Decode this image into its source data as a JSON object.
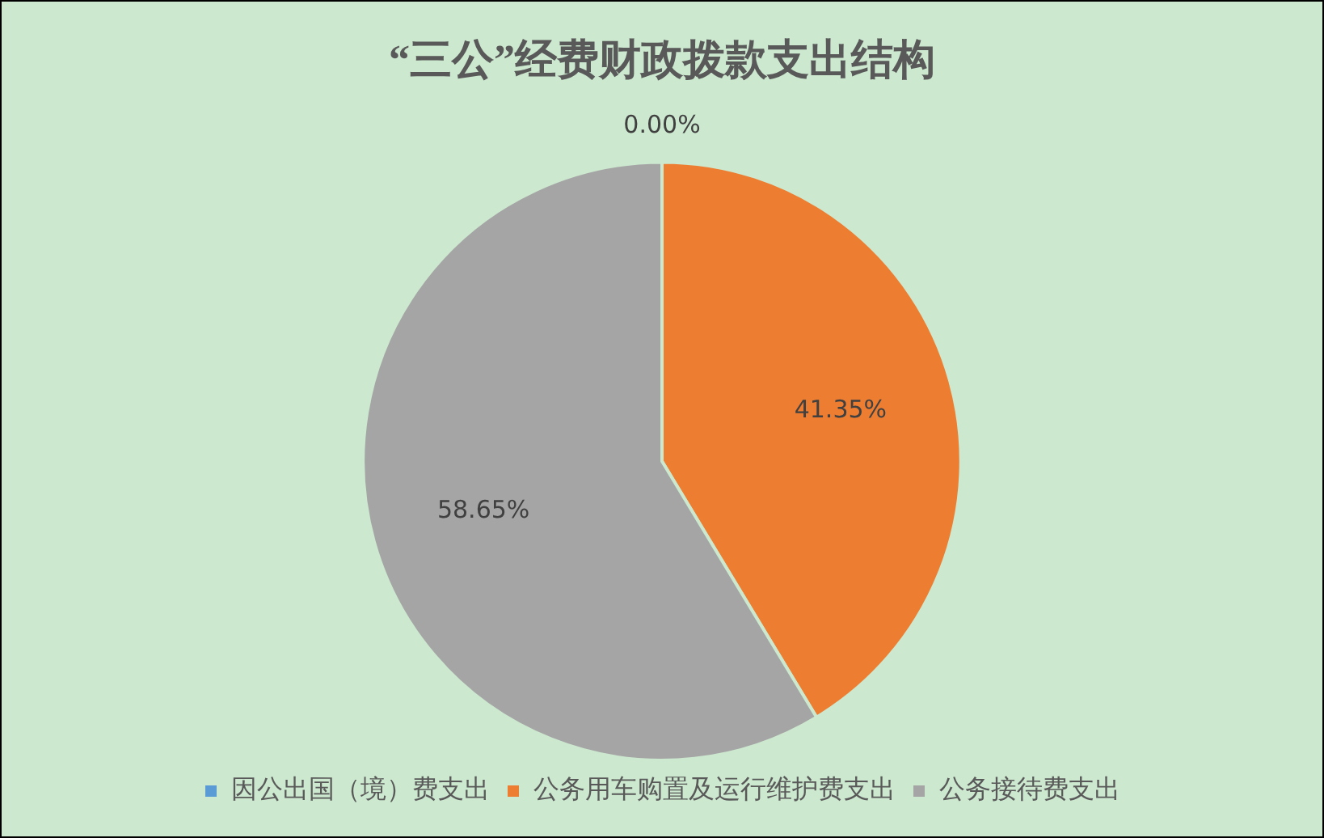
{
  "chart_data": {
    "type": "pie",
    "title": "“三公”经费财政拨款支出结构",
    "categories": [
      "因公出国（境）费支出",
      "公务用车购置及运行维护费支出",
      "公务接待费支出"
    ],
    "values": [
      0,
      41.35,
      58.65
    ],
    "colors": [
      "#5b9bd5",
      "#ed7d31",
      "#a5a5a5"
    ],
    "value_labels": [
      "0.00%",
      "41.35%",
      "58.65%"
    ],
    "legend": "bottom"
  }
}
